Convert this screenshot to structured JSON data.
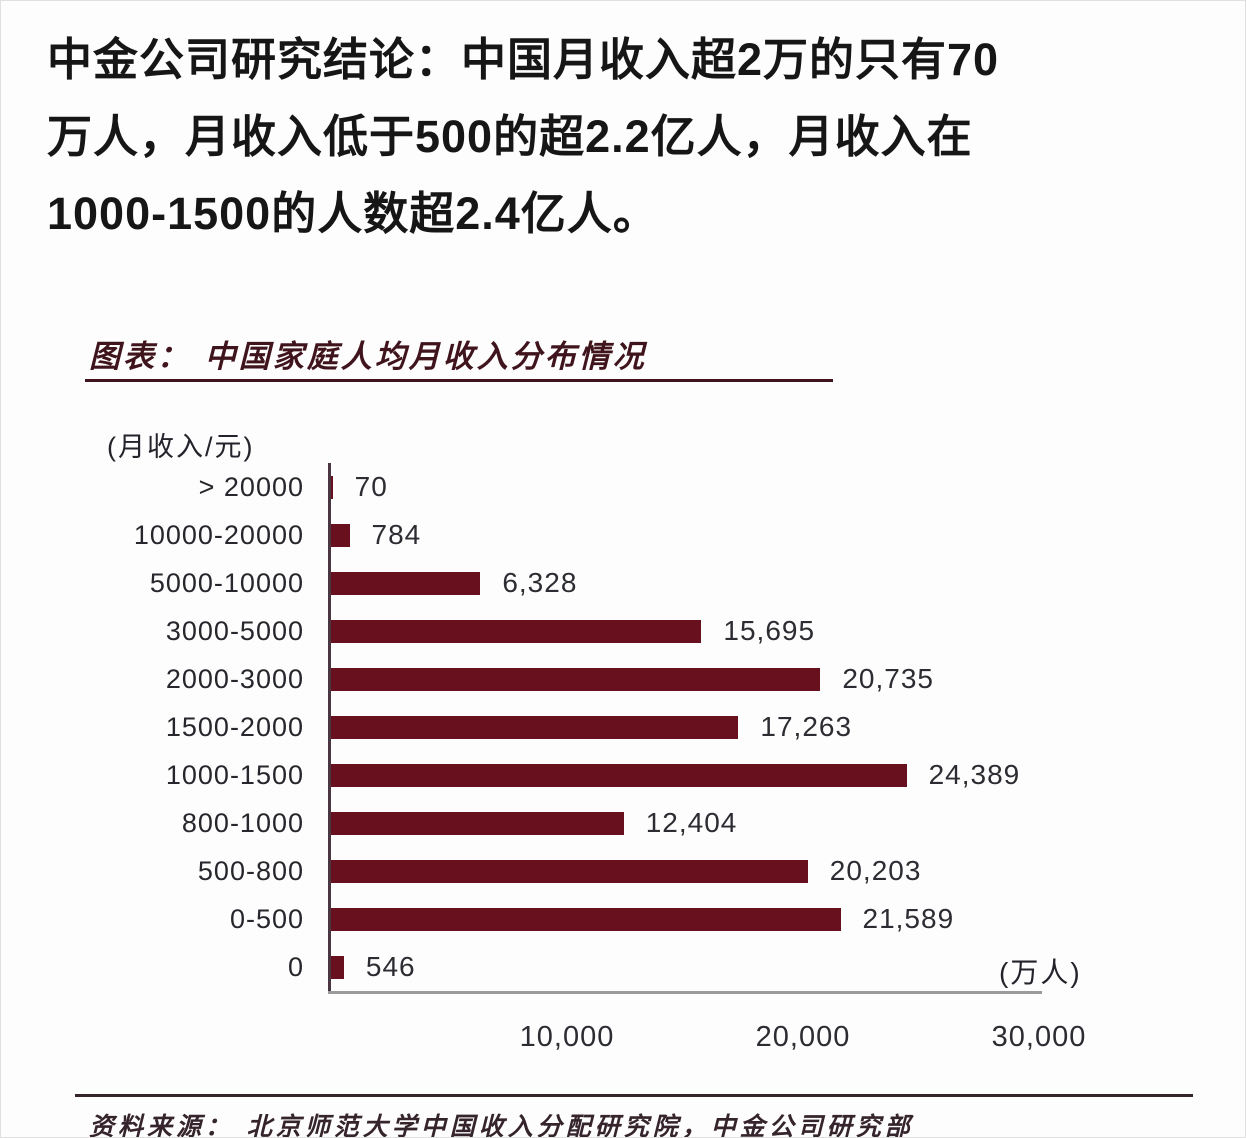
{
  "header": {
    "lines": [
      "中金公司研究结论：中国月收入超2万的只有70",
      "万人，月收入低于500的超2.2亿人，月收入在",
      "1000-1500的人数超2.4亿人。"
    ]
  },
  "chart": {
    "title": "图表： 中国家庭人均月收入分布情况",
    "y_axis_header": "(月收入/元)",
    "unit_label": "(万人)",
    "bar_color": "#69101e"
  },
  "chart_data": {
    "type": "bar",
    "orientation": "horizontal",
    "title": "中国家庭人均月收入分布情况",
    "ylabel": "(月收入/元)",
    "xlabel": "(万人)",
    "xlim": [
      0,
      30000
    ],
    "x_ticks": [
      {
        "label": "10,000",
        "value": 10000
      },
      {
        "label": "20,000",
        "value": 20000
      },
      {
        "label": "30,000",
        "value": 30000
      }
    ],
    "categories": [
      "> 20000",
      "10000-20000",
      "5000-10000",
      "3000-5000",
      "2000-3000",
      "1500-2000",
      "1000-1500",
      "800-1000",
      "500-800",
      "0-500",
      "0"
    ],
    "values": [
      70,
      784,
      6328,
      15695,
      20735,
      17263,
      24389,
      12404,
      20203,
      21589,
      546
    ],
    "value_labels": [
      "70",
      "784",
      "6,328",
      "15,695",
      "20,735",
      "17,263",
      "24,389",
      "12,404",
      "20,203",
      "21,589",
      "546"
    ],
    "legend": [],
    "grid": false
  },
  "footer": {
    "source": "资料来源： 北京师范大学中国收入分配研究院，中金公司研究部"
  }
}
